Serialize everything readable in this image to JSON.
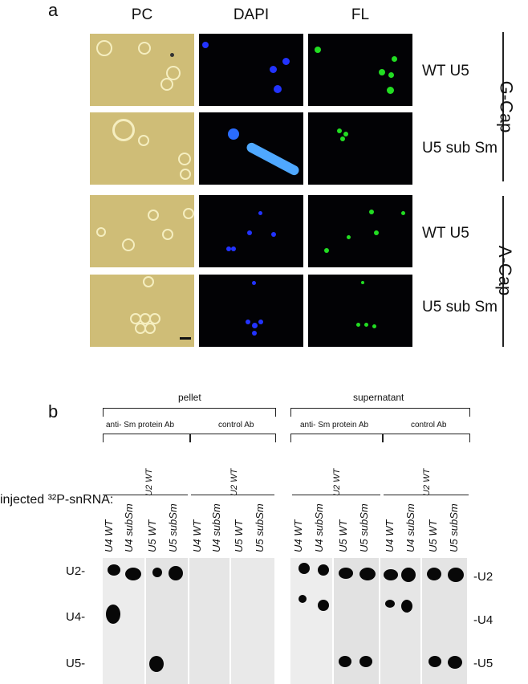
{
  "panel_a": {
    "letter": "a",
    "columns": [
      "PC",
      "DAPI",
      "FL"
    ],
    "rows": [
      "WT U5",
      "U5 sub Sm",
      "WT U5",
      "U5 sub Sm"
    ],
    "groups": [
      "G-Cap",
      "A-Cap"
    ]
  },
  "panel_b": {
    "letter": "b",
    "top_groups": [
      "pellet",
      "supernatant"
    ],
    "sub_groups": [
      "anti- Sm protein Ab",
      "control Ab",
      "anti- Sm protein Ab",
      "control Ab"
    ],
    "u2_label": "U2 WT",
    "injected_label": "injected ³²P-snRNA:",
    "lanes": [
      "U4 WT",
      "U4 subSm",
      "U5 WT",
      "U5 subSm"
    ],
    "left_bands": [
      "U2-",
      "U4-",
      "U5-"
    ],
    "right_bands": [
      "-U2",
      "-U4",
      "-U5"
    ]
  },
  "colors": {
    "pc": "#cfbd77",
    "dapi": "#2233ff",
    "fl": "#22dd22"
  }
}
